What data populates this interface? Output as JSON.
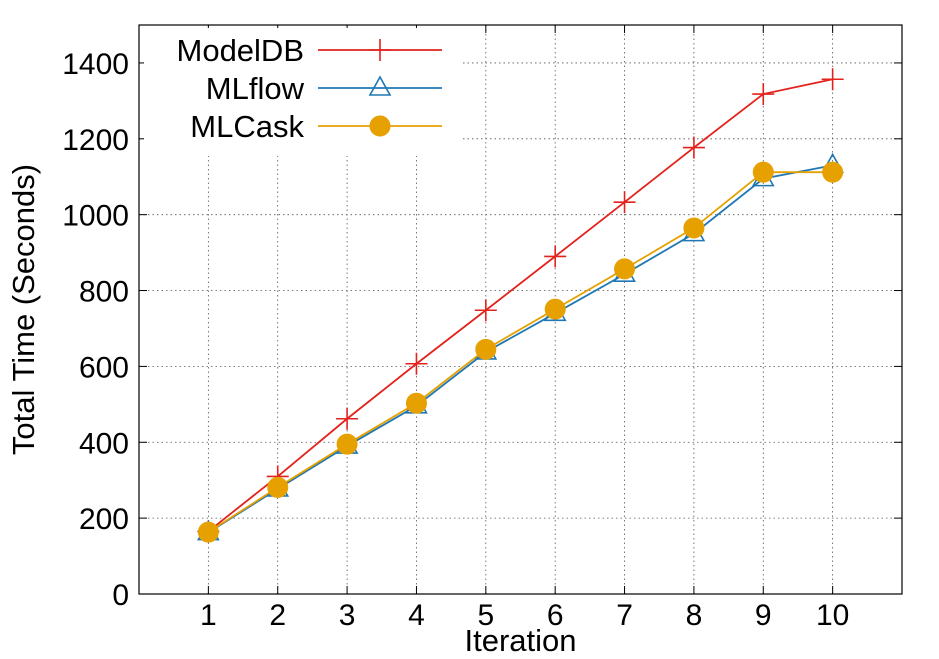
{
  "chart_data": {
    "type": "line",
    "title": "",
    "xlabel": "Iteration",
    "ylabel": "Total Time (Seconds)",
    "xlim": [
      0,
      11
    ],
    "ylim": [
      0,
      1500
    ],
    "x_ticks": [
      "1",
      "2",
      "3",
      "4",
      "5",
      "6",
      "7",
      "8",
      "9",
      "10"
    ],
    "y_ticks": [
      "0",
      "200",
      "400",
      "600",
      "800",
      "1000",
      "1200",
      "1400"
    ],
    "grid": true,
    "legend_position": "top-left",
    "x": [
      1,
      2,
      3,
      4,
      5,
      6,
      7,
      8,
      9,
      10
    ],
    "series": [
      {
        "name": "ModelDB",
        "color": "#e3221c",
        "marker": "plus",
        "values": [
          165,
          310,
          462,
          607,
          748,
          890,
          1033,
          1177,
          1318,
          1357
        ]
      },
      {
        "name": "MLflow",
        "color": "#1f78b4",
        "marker": "triangle",
        "values": [
          162,
          277,
          390,
          496,
          638,
          740,
          843,
          950,
          1095,
          1130
        ]
      },
      {
        "name": "MLCask",
        "color": "#e6a100",
        "marker": "circle",
        "values": [
          163,
          281,
          395,
          503,
          645,
          751,
          857,
          965,
          1112,
          1112
        ]
      }
    ]
  }
}
